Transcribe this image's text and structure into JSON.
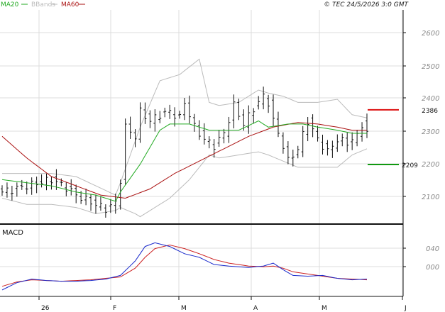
{
  "header": {
    "copyright": "© TEC 24/5/2026 3:0 GMT",
    "legend": [
      {
        "label": "MA20",
        "color": "#22aa22"
      },
      {
        "label": "BBands",
        "color": "#bbbbbb"
      },
      {
        "label": "MA60",
        "color": "#aa1111"
      }
    ]
  },
  "colors": {
    "price": "#111111",
    "ma20": "#22aa22",
    "bbands": "#bbbbbb",
    "ma60": "#aa1111",
    "macd": "#1a2acc",
    "signal": "#cc2222",
    "grid": "#dcdcdc",
    "resistance": "#dd1111",
    "support": "#119911"
  },
  "chart_data": [
    {
      "type": "line",
      "panel": "price",
      "y_ticks": [
        "2600",
        "2500",
        "2400",
        "2300",
        "2200",
        "2100"
      ],
      "ylim": [
        2030,
        2700
      ],
      "grid": true,
      "x_labels": [
        "26",
        "F",
        "M",
        "A",
        "M",
        "J"
      ],
      "levels": [
        {
          "name": "resistance",
          "label": "2386",
          "value": 2386
        },
        {
          "name": "support",
          "label": "2209",
          "value": 2209
        }
      ],
      "price_anchors": [
        [
          0,
          2120
        ],
        [
          5,
          2140
        ],
        [
          10,
          2160
        ],
        [
          13,
          2135
        ],
        [
          15,
          2110
        ],
        [
          17,
          2095
        ],
        [
          19,
          2080
        ],
        [
          21,
          2065
        ],
        [
          23,
          2085
        ],
        [
          24,
          2160
        ],
        [
          25,
          2330
        ],
        [
          27,
          2300
        ],
        [
          28,
          2380
        ],
        [
          30,
          2350
        ],
        [
          32,
          2370
        ],
        [
          34,
          2380
        ],
        [
          36,
          2360
        ],
        [
          37,
          2410
        ],
        [
          39,
          2330
        ],
        [
          41,
          2290
        ],
        [
          43,
          2270
        ],
        [
          45,
          2310
        ],
        [
          47,
          2400
        ],
        [
          49,
          2340
        ],
        [
          51,
          2390
        ],
        [
          53,
          2430
        ],
        [
          54,
          2410
        ],
        [
          55,
          2350
        ],
        [
          57,
          2270
        ],
        [
          58,
          2220
        ],
        [
          60,
          2260
        ],
        [
          62,
          2350
        ],
        [
          64,
          2290
        ],
        [
          66,
          2250
        ],
        [
          68,
          2290
        ],
        [
          70,
          2280
        ],
        [
          72,
          2300
        ],
        [
          73,
          2340
        ],
        [
          74,
          2310
        ]
      ],
      "ma20_anchors": [
        [
          0,
          2160
        ],
        [
          5,
          2150
        ],
        [
          10,
          2140
        ],
        [
          15,
          2120
        ],
        [
          19,
          2110
        ],
        [
          23,
          2090
        ],
        [
          24,
          2120
        ],
        [
          28,
          2210
        ],
        [
          32,
          2320
        ],
        [
          34,
          2340
        ],
        [
          38,
          2340
        ],
        [
          42,
          2320
        ],
        [
          44,
          2320
        ],
        [
          48,
          2320
        ],
        [
          52,
          2350
        ],
        [
          54,
          2330
        ],
        [
          58,
          2340
        ],
        [
          61,
          2340
        ],
        [
          64,
          2330
        ],
        [
          68,
          2320
        ],
        [
          71,
          2310
        ],
        [
          74,
          2310
        ]
      ],
      "bb_upper_anchors": [
        [
          0,
          2180
        ],
        [
          5,
          2180
        ],
        [
          10,
          2180
        ],
        [
          15,
          2170
        ],
        [
          19,
          2140
        ],
        [
          23,
          2110
        ],
        [
          24,
          2150
        ],
        [
          28,
          2330
        ],
        [
          32,
          2480
        ],
        [
          36,
          2500
        ],
        [
          40,
          2550
        ],
        [
          42,
          2410
        ],
        [
          44,
          2400
        ],
        [
          48,
          2410
        ],
        [
          52,
          2450
        ],
        [
          54,
          2440
        ],
        [
          57,
          2430
        ],
        [
          60,
          2410
        ],
        [
          64,
          2410
        ],
        [
          68,
          2420
        ],
        [
          71,
          2370
        ],
        [
          74,
          2360
        ]
      ],
      "bb_lower_anchors": [
        [
          0,
          2100
        ],
        [
          5,
          2080
        ],
        [
          10,
          2080
        ],
        [
          15,
          2070
        ],
        [
          19,
          2050
        ],
        [
          23,
          2060
        ],
        [
          24,
          2070
        ],
        [
          27,
          2050
        ],
        [
          28,
          2040
        ],
        [
          30,
          2060
        ],
        [
          34,
          2100
        ],
        [
          38,
          2160
        ],
        [
          42,
          2240
        ],
        [
          44,
          2230
        ],
        [
          48,
          2240
        ],
        [
          52,
          2250
        ],
        [
          54,
          2240
        ],
        [
          57,
          2220
        ],
        [
          60,
          2200
        ],
        [
          64,
          2200
        ],
        [
          68,
          2200
        ],
        [
          71,
          2240
        ],
        [
          74,
          2260
        ]
      ],
      "ma60_anchors": [
        [
          0,
          2300
        ],
        [
          5,
          2230
        ],
        [
          10,
          2170
        ],
        [
          15,
          2140
        ],
        [
          20,
          2110
        ],
        [
          25,
          2100
        ],
        [
          30,
          2130
        ],
        [
          35,
          2180
        ],
        [
          40,
          2220
        ],
        [
          45,
          2260
        ],
        [
          50,
          2300
        ],
        [
          55,
          2330
        ],
        [
          60,
          2345
        ],
        [
          64,
          2340
        ],
        [
          68,
          2330
        ],
        [
          71,
          2320
        ],
        [
          74,
          2320
        ]
      ]
    },
    {
      "type": "line",
      "panel": "macd",
      "title": "MACD",
      "y_ticks": [
        "040",
        "000"
      ],
      "ylim": [
        -20,
        70
      ],
      "grid": true,
      "macd_anchors": [
        [
          0,
          -15
        ],
        [
          3,
          -5
        ],
        [
          6,
          0
        ],
        [
          9,
          -2
        ],
        [
          12,
          -3
        ],
        [
          15,
          -3
        ],
        [
          18,
          -2
        ],
        [
          21,
          0
        ],
        [
          24,
          5
        ],
        [
          27,
          25
        ],
        [
          29,
          45
        ],
        [
          31,
          50
        ],
        [
          34,
          45
        ],
        [
          37,
          35
        ],
        [
          40,
          30
        ],
        [
          43,
          20
        ],
        [
          46,
          18
        ],
        [
          50,
          16
        ],
        [
          53,
          18
        ],
        [
          55,
          22
        ],
        [
          57,
          13
        ],
        [
          59,
          5
        ],
        [
          62,
          4
        ],
        [
          65,
          5
        ],
        [
          68,
          1
        ],
        [
          71,
          -1
        ],
        [
          74,
          0
        ]
      ],
      "signal_anchors": [
        [
          0,
          -10
        ],
        [
          3,
          -4
        ],
        [
          6,
          -1
        ],
        [
          9,
          -2
        ],
        [
          12,
          -3
        ],
        [
          15,
          -2
        ],
        [
          18,
          -1
        ],
        [
          21,
          1
        ],
        [
          24,
          3
        ],
        [
          27,
          15
        ],
        [
          29,
          30
        ],
        [
          31,
          42
        ],
        [
          34,
          47
        ],
        [
          37,
          42
        ],
        [
          40,
          35
        ],
        [
          43,
          27
        ],
        [
          46,
          22
        ],
        [
          50,
          18
        ],
        [
          53,
          17
        ],
        [
          55,
          18
        ],
        [
          57,
          15
        ],
        [
          59,
          10
        ],
        [
          62,
          7
        ],
        [
          65,
          4
        ],
        [
          68,
          1
        ],
        [
          71,
          0
        ],
        [
          74,
          -1
        ]
      ]
    }
  ]
}
